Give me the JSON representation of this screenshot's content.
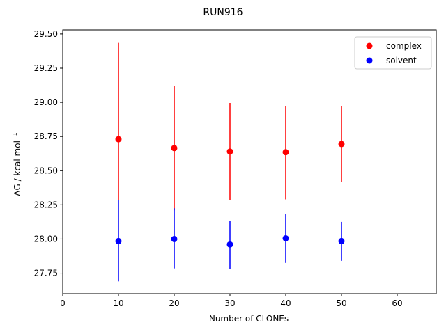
{
  "chart_data": {
    "type": "scatter",
    "title": "RUN916",
    "xlabel": "Number of CLONEs",
    "ylabel_main": "ΔG / kcal mol",
    "ylabel_sup": "−1",
    "xlim": [
      0,
      67
    ],
    "ylim": [
      27.6,
      29.53
    ],
    "xticks": [
      0,
      10,
      20,
      30,
      40,
      50,
      60
    ],
    "xtick_labels": [
      "0",
      "10",
      "20",
      "30",
      "40",
      "50",
      "60"
    ],
    "yticks": [
      27.75,
      28.0,
      28.25,
      28.5,
      28.75,
      29.0,
      29.25,
      29.5
    ],
    "ytick_labels": [
      "27.75",
      "28.00",
      "28.25",
      "28.50",
      "28.75",
      "29.00",
      "29.25",
      "29.50"
    ],
    "grid": false,
    "legend_position": "top-right",
    "series": [
      {
        "name": "complex",
        "color": "#ff0000",
        "x": [
          10,
          20,
          30,
          40,
          50
        ],
        "y": [
          28.73,
          28.665,
          28.64,
          28.635,
          28.695
        ],
        "err_low": [
          28.285,
          28.21,
          28.285,
          28.29,
          28.415
        ],
        "err_high": [
          29.435,
          29.12,
          28.995,
          28.975,
          28.97
        ]
      },
      {
        "name": "solvent",
        "color": "#0000ff",
        "x": [
          10,
          20,
          30,
          40,
          50
        ],
        "y": [
          27.985,
          28.0,
          27.96,
          28.005,
          27.985
        ],
        "err_low": [
          27.69,
          27.785,
          27.78,
          27.825,
          27.84
        ],
        "err_high": [
          28.285,
          28.225,
          28.13,
          28.185,
          28.125
        ]
      }
    ]
  }
}
